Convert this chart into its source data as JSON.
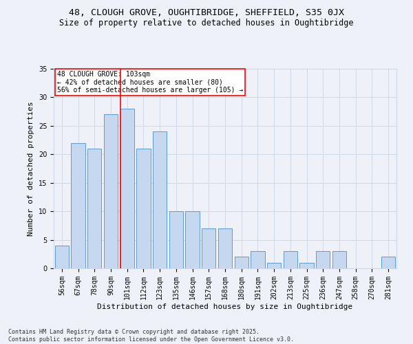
{
  "title_line1": "48, CLOUGH GROVE, OUGHTIBRIDGE, SHEFFIELD, S35 0JX",
  "title_line2": "Size of property relative to detached houses in Oughtibridge",
  "xlabel": "Distribution of detached houses by size in Oughtibridge",
  "ylabel": "Number of detached properties",
  "categories": [
    "56sqm",
    "67sqm",
    "78sqm",
    "90sqm",
    "101sqm",
    "112sqm",
    "123sqm",
    "135sqm",
    "146sqm",
    "157sqm",
    "168sqm",
    "180sqm",
    "191sqm",
    "202sqm",
    "213sqm",
    "225sqm",
    "236sqm",
    "247sqm",
    "258sqm",
    "270sqm",
    "281sqm"
  ],
  "values": [
    4,
    22,
    21,
    27,
    28,
    21,
    24,
    10,
    10,
    7,
    7,
    2,
    3,
    1,
    3,
    1,
    3,
    3,
    0,
    0,
    2
  ],
  "bar_color": "#c5d8f0",
  "bar_edge_color": "#5b9bd5",
  "grid_color": "#d0d8e4",
  "background_color": "#eef2f8",
  "vline_color": "red",
  "annotation_text": "48 CLOUGH GROVE: 103sqm\n← 42% of detached houses are smaller (80)\n56% of semi-detached houses are larger (105) →",
  "annotation_box_color": "white",
  "annotation_box_edge": "red",
  "ylim": [
    0,
    35
  ],
  "yticks": [
    0,
    5,
    10,
    15,
    20,
    25,
    30,
    35
  ],
  "footnote": "Contains HM Land Registry data © Crown copyright and database right 2025.\nContains public sector information licensed under the Open Government Licence v3.0.",
  "title_fontsize": 9.5,
  "subtitle_fontsize": 8.5,
  "label_fontsize": 8,
  "tick_fontsize": 7,
  "footnote_fontsize": 6,
  "annotation_fontsize": 7
}
